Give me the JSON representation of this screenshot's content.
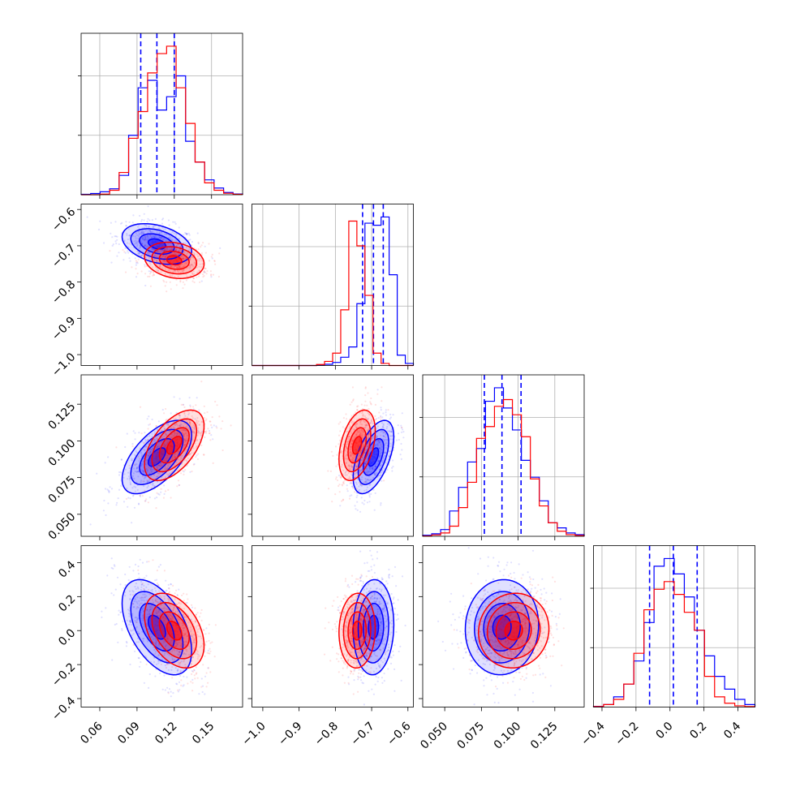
{
  "chart_data": {
    "type": "corner",
    "title": "",
    "parameters": [
      {
        "index": 0,
        "range": [
          0.045,
          0.175
        ],
        "ticks": [
          0.06,
          0.09,
          0.12,
          0.15
        ],
        "tick_labels": [
          "0.06",
          "0.09",
          "0.12",
          "0.15"
        ]
      },
      {
        "index": 1,
        "range": [
          -1.03,
          -0.585
        ],
        "ticks": [
          -1.0,
          -0.9,
          -0.8,
          -0.7,
          -0.6
        ],
        "tick_labels": [
          "−1.0",
          "−0.9",
          "−0.8",
          "−0.7",
          "−0.6"
        ]
      },
      {
        "index": 2,
        "range": [
          0.035,
          0.145
        ],
        "ticks": [
          0.05,
          0.075,
          0.1,
          0.125
        ],
        "tick_labels": [
          "0.050",
          "0.075",
          "0.100",
          "0.125"
        ]
      },
      {
        "index": 3,
        "range": [
          -0.45,
          0.5
        ],
        "ticks": [
          -0.4,
          -0.2,
          0.0,
          0.2,
          0.4
        ],
        "tick_labels": [
          "−0.4",
          "−0.2",
          "0.0",
          "0.2",
          "0.4"
        ]
      }
    ],
    "series": [
      {
        "name": "",
        "color": "#0000ff",
        "means": [
          0.106,
          -0.695,
          0.089,
          0.02
        ],
        "sigmas": [
          0.014,
          0.028,
          0.0125,
          0.14
        ],
        "correlations": {
          "0-1": -0.35,
          "0-2": 0.6,
          "0-3": -0.5,
          "1-2": 0.55,
          "1-3": 0.05,
          "2-3": 0.05
        },
        "quantiles": [
          [
            0.093,
            0.106,
            0.12
          ],
          [
            -0.725,
            -0.695,
            -0.668
          ],
          [
            0.077,
            0.089,
            0.102
          ],
          [
            -0.12,
            0.02,
            0.16
          ]
        ],
        "histograms": [
          [
            0.003,
            0.008,
            0.02,
            0.04,
            0.13,
            0.4,
            0.72,
            0.77,
            0.57,
            0.66,
            0.8,
            0.36,
            0.22,
            0.1,
            0.045,
            0.015,
            0.005
          ],
          [
            0,
            0,
            0,
            0,
            0,
            0,
            0,
            0,
            0.002,
            0.006,
            0.015,
            0.04,
            0.09,
            0.3,
            0.69,
            0.68,
            0.72,
            0.44,
            0.05,
            0.01
          ],
          [
            0.006,
            0.015,
            0.04,
            0.15,
            0.29,
            0.44,
            0.52,
            0.8,
            0.88,
            0.76,
            0.63,
            0.45,
            0.35,
            0.21,
            0.08,
            0.05,
            0.02,
            0.01
          ],
          [
            0.003,
            0.01,
            0.04,
            0.09,
            0.18,
            0.33,
            0.55,
            0.58,
            0.52,
            0.43,
            0.3,
            0.2,
            0.12,
            0.07,
            0.03,
            0.01
          ]
        ]
      },
      {
        "name": "",
        "color": "#ff0000",
        "means": [
          0.12,
          -0.74,
          0.097,
          0.0
        ],
        "sigmas": [
          0.012,
          0.025,
          0.012,
          0.11
        ],
        "correlations": {
          "0-1": -0.2,
          "0-2": 0.55,
          "0-3": -0.4,
          "1-2": 0.4,
          "1-3": 0.05,
          "2-3": 0.05
        },
        "quantiles": [],
        "histograms": [
          [
            0,
            0,
            0.004,
            0.03,
            0.15,
            0.38,
            0.56,
            0.82,
            0.95,
            1.0,
            0.72,
            0.48,
            0.22,
            0.08,
            0.03,
            0.01,
            0.003
          ],
          [
            0,
            0,
            0,
            0,
            0,
            0,
            0,
            0,
            0.005,
            0.02,
            0.06,
            0.27,
            0.7,
            0.58,
            0.34,
            0.06,
            0.01,
            0,
            0,
            0
          ],
          [
            0.002,
            0.008,
            0.02,
            0.06,
            0.17,
            0.32,
            0.58,
            0.65,
            0.77,
            0.81,
            0.72,
            0.59,
            0.34,
            0.18,
            0.08,
            0.03,
            0.01,
            0.005
          ],
          [
            0.002,
            0.01,
            0.03,
            0.09,
            0.21,
            0.38,
            0.46,
            0.49,
            0.44,
            0.37,
            0.3,
            0.12,
            0.04,
            0.015,
            0.005,
            0.002
          ]
        ]
      }
    ],
    "contour_levels_sigma": [
      0.5,
      1.0,
      1.5,
      2.0
    ],
    "grid": true,
    "legend": "none"
  }
}
